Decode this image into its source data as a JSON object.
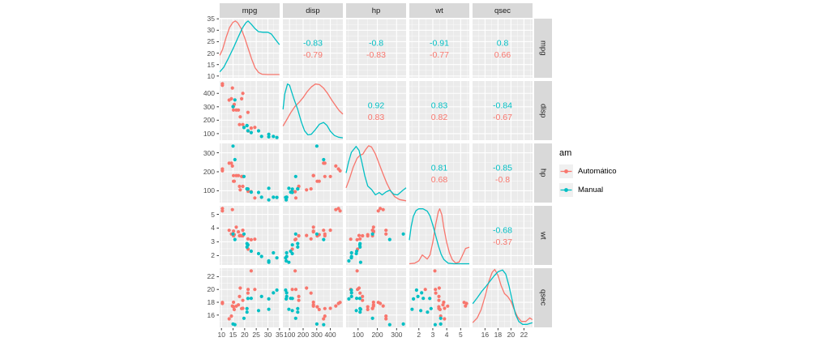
{
  "colors": {
    "automatic": "#F8766D",
    "manual": "#00BFC4",
    "panel_bg": "#EBEBEB",
    "strip_bg": "#D9D9D9",
    "grid_major": "#FFFFFF",
    "grid_minor": "#FFFFFF",
    "axis_text": "#4D4D4D",
    "strip_text": "#1A1A1A",
    "tick_mark": "#333333",
    "legend_key_bg": "#F0F0F0"
  },
  "legend": {
    "title": "am",
    "items": [
      {
        "label": "Automático",
        "color": "#F8766D"
      },
      {
        "label": "Manual",
        "color": "#00BFC4"
      }
    ]
  },
  "chart_data": {
    "type": "scatter",
    "subtype": "scatterplot-matrix-ggpairs",
    "variables": [
      "mpg",
      "disp",
      "hp",
      "wt",
      "qsec"
    ],
    "column_headers": [
      "mpg",
      "disp",
      "hp",
      "wt",
      "qsec"
    ],
    "row_headers": [
      "mpg",
      "disp",
      "hp",
      "wt",
      "qsec"
    ],
    "group_field": "am",
    "groups": [
      {
        "name": "Automático",
        "color": "#F8766D"
      },
      {
        "name": "Manual",
        "color": "#00BFC4"
      }
    ],
    "legend_position": "right",
    "grid": true,
    "scales": {
      "mpg": {
        "domain": [
          9.225,
          35.075
        ],
        "ticks": [
          10,
          15,
          20,
          25,
          30,
          35
        ]
      },
      "disp": {
        "domain": [
          51.06,
          492.05
        ],
        "ticks": [
          100,
          200,
          300,
          400
        ]
      },
      "hp": {
        "domain": [
          37.85,
          349.15
        ],
        "ticks": [
          100,
          200,
          300
        ]
      },
      "wt": {
        "domain": [
          1.3175,
          5.6196
        ],
        "ticks": [
          2,
          3,
          4,
          5
        ]
      },
      "qsec": {
        "domain": [
          14.08,
          23.32
        ],
        "ticks": [
          16,
          18,
          20,
          22
        ]
      }
    },
    "correlations": {
      "mpg_disp": {
        "Manual": "-0.83",
        "Automático": "-0.79"
      },
      "mpg_hp": {
        "Manual": "-0.8",
        "Automático": "-0.83"
      },
      "mpg_wt": {
        "Manual": "-0.91",
        "Automático": "-0.77"
      },
      "mpg_qsec": {
        "Manual": "0.8",
        "Automático": "0.66"
      },
      "disp_hp": {
        "Manual": "0.92",
        "Automático": "0.83"
      },
      "disp_wt": {
        "Manual": "0.83",
        "Automático": "0.82"
      },
      "disp_qsec": {
        "Manual": "-0.84",
        "Automático": "-0.67"
      },
      "hp_wt": {
        "Manual": "0.81",
        "Automático": "0.68"
      },
      "hp_qsec": {
        "Manual": "-0.85",
        "Automático": "-0.8"
      },
      "wt_qsec": {
        "Manual": "-0.68",
        "Automático": "-0.37"
      }
    },
    "points": {
      "Automático": [
        [
          21.4,
          258,
          110,
          3.215,
          19.44
        ],
        [
          18.7,
          360,
          175,
          3.44,
          17.02
        ],
        [
          18.1,
          225,
          105,
          3.46,
          20.22
        ],
        [
          14.3,
          360,
          245,
          3.57,
          15.84
        ],
        [
          24.4,
          146.7,
          62,
          3.19,
          20.0
        ],
        [
          22.8,
          140.8,
          95,
          3.15,
          22.9
        ],
        [
          19.2,
          167.6,
          123,
          3.44,
          18.3
        ],
        [
          17.8,
          167.6,
          123,
          3.44,
          18.9
        ],
        [
          16.4,
          275.8,
          180,
          4.07,
          17.4
        ],
        [
          17.3,
          275.8,
          180,
          3.73,
          17.6
        ],
        [
          15.2,
          275.8,
          180,
          3.78,
          18.0
        ],
        [
          10.4,
          472,
          205,
          5.25,
          17.98
        ],
        [
          10.4,
          460,
          215,
          5.424,
          17.82
        ],
        [
          14.7,
          440,
          230,
          5.345,
          17.42
        ],
        [
          21.5,
          120.1,
          97,
          2.465,
          20.01
        ],
        [
          15.5,
          318,
          150,
          3.52,
          16.87
        ],
        [
          15.2,
          304,
          150,
          3.435,
          17.3
        ],
        [
          13.3,
          350,
          245,
          3.84,
          15.41
        ],
        [
          19.2,
          400,
          175,
          3.845,
          17.05
        ]
      ],
      "Manual": [
        [
          21.0,
          160,
          110,
          2.62,
          16.46
        ],
        [
          21.0,
          160,
          110,
          2.875,
          17.02
        ],
        [
          22.8,
          108,
          93,
          2.32,
          18.61
        ],
        [
          32.4,
          78.7,
          66,
          2.2,
          19.47
        ],
        [
          30.4,
          75.7,
          52,
          1.615,
          18.52
        ],
        [
          33.9,
          71.1,
          65,
          1.835,
          19.9
        ],
        [
          27.3,
          79,
          66,
          1.935,
          18.9
        ],
        [
          26.0,
          120.3,
          91,
          2.14,
          16.7
        ],
        [
          30.4,
          95.1,
          113,
          1.513,
          16.9
        ],
        [
          15.8,
          351,
          264,
          3.17,
          14.5
        ],
        [
          19.7,
          145,
          175,
          3.57,
          15.5
        ],
        [
          15.0,
          301,
          335,
          3.57,
          14.6
        ],
        [
          21.4,
          121,
          109,
          2.78,
          18.6
        ]
      ]
    },
    "densities": {
      "mpg": {
        "Automático": [
          [
            9.3,
            0.38
          ],
          [
            10.5,
            0.48
          ],
          [
            12,
            0.68
          ],
          [
            13.5,
            0.85
          ],
          [
            15,
            0.94
          ],
          [
            16,
            0.96
          ],
          [
            17,
            0.93
          ],
          [
            18.5,
            0.83
          ],
          [
            20,
            0.68
          ],
          [
            21.5,
            0.5
          ],
          [
            23,
            0.32
          ],
          [
            24.5,
            0.17
          ],
          [
            26,
            0.09
          ],
          [
            27.5,
            0.06
          ],
          [
            30,
            0.055
          ],
          [
            35,
            0.055
          ]
        ],
        "Manual": [
          [
            9.3,
            0.1
          ],
          [
            11,
            0.18
          ],
          [
            13,
            0.33
          ],
          [
            15,
            0.49
          ],
          [
            17,
            0.67
          ],
          [
            19,
            0.84
          ],
          [
            20.5,
            0.93
          ],
          [
            21.5,
            0.96
          ],
          [
            23,
            0.9
          ],
          [
            24.5,
            0.83
          ],
          [
            26,
            0.78
          ],
          [
            28,
            0.77
          ],
          [
            30,
            0.77
          ],
          [
            31.5,
            0.74
          ],
          [
            33,
            0.66
          ],
          [
            35,
            0.56
          ]
        ]
      },
      "disp": {
        "Automático": [
          [
            52,
            0.24
          ],
          [
            80,
            0.35
          ],
          [
            110,
            0.47
          ],
          [
            140,
            0.57
          ],
          [
            170,
            0.64
          ],
          [
            200,
            0.72
          ],
          [
            230,
            0.82
          ],
          [
            260,
            0.9
          ],
          [
            290,
            0.95
          ],
          [
            320,
            0.94
          ],
          [
            350,
            0.88
          ],
          [
            380,
            0.79
          ],
          [
            410,
            0.68
          ],
          [
            440,
            0.58
          ],
          [
            465,
            0.5
          ],
          [
            492,
            0.44
          ]
        ],
        "Manual": [
          [
            52,
            0.52
          ],
          [
            65,
            0.78
          ],
          [
            85,
            0.95
          ],
          [
            100,
            0.93
          ],
          [
            115,
            0.82
          ],
          [
            135,
            0.68
          ],
          [
            160,
            0.52
          ],
          [
            185,
            0.32
          ],
          [
            210,
            0.16
          ],
          [
            235,
            0.09
          ],
          [
            260,
            0.1
          ],
          [
            290,
            0.18
          ],
          [
            320,
            0.27
          ],
          [
            350,
            0.3
          ],
          [
            375,
            0.25
          ],
          [
            400,
            0.15
          ],
          [
            430,
            0.08
          ],
          [
            460,
            0.05
          ],
          [
            492,
            0.04
          ]
        ]
      },
      "hp": {
        "Automático": [
          [
            38,
            0.25
          ],
          [
            55,
            0.4
          ],
          [
            75,
            0.6
          ],
          [
            95,
            0.75
          ],
          [
            110,
            0.8
          ],
          [
            125,
            0.82
          ],
          [
            140,
            0.9
          ],
          [
            155,
            0.96
          ],
          [
            170,
            0.94
          ],
          [
            190,
            0.82
          ],
          [
            210,
            0.65
          ],
          [
            230,
            0.48
          ],
          [
            250,
            0.32
          ],
          [
            270,
            0.19
          ],
          [
            290,
            0.1
          ],
          [
            315,
            0.05
          ],
          [
            349,
            0.03
          ]
        ],
        "Manual": [
          [
            38,
            0.5
          ],
          [
            50,
            0.68
          ],
          [
            65,
            0.85
          ],
          [
            90,
            0.95
          ],
          [
            105,
            0.88
          ],
          [
            120,
            0.68
          ],
          [
            135,
            0.45
          ],
          [
            150,
            0.28
          ],
          [
            170,
            0.22
          ],
          [
            190,
            0.13
          ],
          [
            210,
            0.17
          ],
          [
            225,
            0.13
          ],
          [
            245,
            0.18
          ],
          [
            265,
            0.21
          ],
          [
            285,
            0.14
          ],
          [
            305,
            0.13
          ],
          [
            330,
            0.2
          ],
          [
            349,
            0.25
          ]
        ]
      },
      "wt": {
        "Automático": [
          [
            1.32,
            0.02
          ],
          [
            1.7,
            0.03
          ],
          [
            2.0,
            0.07
          ],
          [
            2.25,
            0.17
          ],
          [
            2.45,
            0.13
          ],
          [
            2.6,
            0.1
          ],
          [
            2.8,
            0.17
          ],
          [
            3.0,
            0.38
          ],
          [
            3.2,
            0.68
          ],
          [
            3.4,
            0.9
          ],
          [
            3.5,
            0.95
          ],
          [
            3.65,
            0.85
          ],
          [
            3.8,
            0.62
          ],
          [
            4.0,
            0.38
          ],
          [
            4.2,
            0.2
          ],
          [
            4.4,
            0.09
          ],
          [
            4.65,
            0.03
          ],
          [
            4.9,
            0.05
          ],
          [
            5.1,
            0.15
          ],
          [
            5.35,
            0.28
          ],
          [
            5.62,
            0.3
          ]
        ],
        "Manual": [
          [
            1.32,
            0.42
          ],
          [
            1.45,
            0.65
          ],
          [
            1.6,
            0.82
          ],
          [
            1.8,
            0.92
          ],
          [
            2.0,
            0.95
          ],
          [
            2.3,
            0.95
          ],
          [
            2.6,
            0.91
          ],
          [
            2.8,
            0.83
          ],
          [
            3.0,
            0.68
          ],
          [
            3.2,
            0.5
          ],
          [
            3.4,
            0.33
          ],
          [
            3.6,
            0.18
          ],
          [
            3.8,
            0.09
          ],
          [
            4.1,
            0.03
          ],
          [
            4.5,
            0.02
          ],
          [
            5.0,
            0.02
          ],
          [
            5.62,
            0.02
          ]
        ]
      },
      "qsec": {
        "Automático": [
          [
            14.1,
            0.08
          ],
          [
            14.8,
            0.16
          ],
          [
            15.4,
            0.3
          ],
          [
            16.0,
            0.52
          ],
          [
            16.6,
            0.78
          ],
          [
            17.1,
            0.93
          ],
          [
            17.5,
            0.98
          ],
          [
            18.0,
            0.88
          ],
          [
            18.5,
            0.7
          ],
          [
            19.0,
            0.57
          ],
          [
            19.5,
            0.52
          ],
          [
            20.0,
            0.44
          ],
          [
            20.5,
            0.3
          ],
          [
            21.0,
            0.18
          ],
          [
            21.6,
            0.1
          ],
          [
            22.3,
            0.1
          ],
          [
            22.9,
            0.16
          ],
          [
            23.3,
            0.13
          ]
        ],
        "Manual": [
          [
            14.1,
            0.4
          ],
          [
            14.8,
            0.5
          ],
          [
            15.5,
            0.61
          ],
          [
            16.2,
            0.7
          ],
          [
            16.9,
            0.8
          ],
          [
            17.4,
            0.87
          ],
          [
            18.0,
            0.94
          ],
          [
            18.7,
            0.97
          ],
          [
            19.2,
            0.9
          ],
          [
            19.7,
            0.7
          ],
          [
            20.2,
            0.45
          ],
          [
            20.7,
            0.22
          ],
          [
            21.2,
            0.1
          ],
          [
            21.8,
            0.05
          ],
          [
            22.5,
            0.05
          ],
          [
            23.3,
            0.08
          ]
        ]
      }
    }
  }
}
